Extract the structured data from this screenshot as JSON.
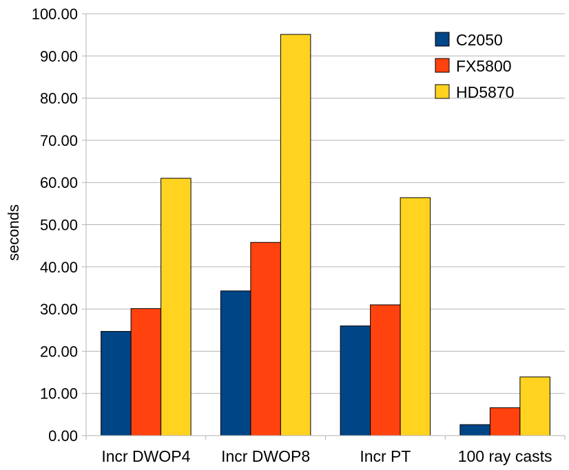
{
  "chart_data": {
    "type": "bar",
    "categories": [
      "Incr DWOP4",
      "Incr DWOP8",
      "Incr PT",
      "100 ray casts"
    ],
    "series": [
      {
        "name": "C2050",
        "values": [
          24.7,
          34.3,
          26.0,
          2.6
        ],
        "color": "#004586"
      },
      {
        "name": "FX5800",
        "values": [
          30.1,
          45.8,
          31.0,
          6.6
        ],
        "color": "#ff420e"
      },
      {
        "name": "HD5870",
        "values": [
          61.0,
          95.1,
          56.4,
          13.9
        ],
        "color": "#ffd320"
      }
    ],
    "title": "",
    "xlabel": "",
    "ylabel": "seconds",
    "ylim": [
      0,
      100
    ],
    "yticks": [
      "0.00",
      "10.00",
      "20.00",
      "30.00",
      "40.00",
      "50.00",
      "60.00",
      "70.00",
      "80.00",
      "90.00",
      "100.00"
    ],
    "grid": true,
    "legend_position": "top-right"
  }
}
